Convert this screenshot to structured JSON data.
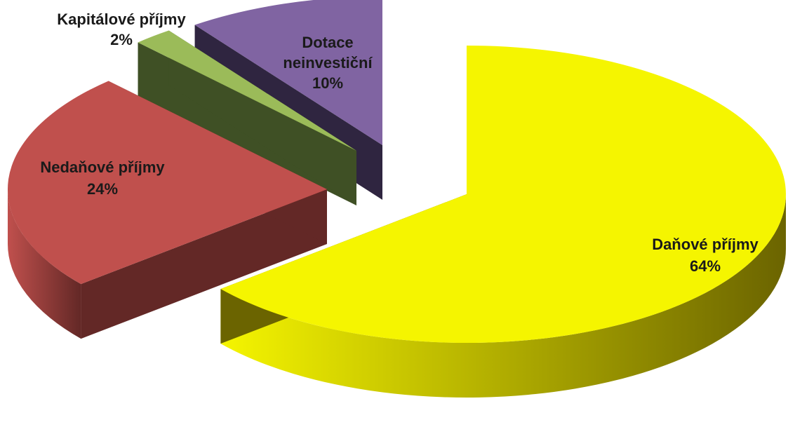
{
  "chart_data": {
    "type": "pie",
    "style": "3d-exploded",
    "slices": [
      {
        "name": "Daňové příjmy",
        "value": 64,
        "label": "64%",
        "color": "#f5f500",
        "side_dark": "#6b6400"
      },
      {
        "name": "Nedaňové příjmy",
        "value": 24,
        "label": "24%",
        "color": "#c0504d",
        "side_dark": "#632826"
      },
      {
        "name": "Kapitálové příjmy",
        "value": 2,
        "label": "2%",
        "color": "#9bbb59",
        "side_dark": "#3f5025"
      },
      {
        "name": "Dotace neinvestiční",
        "value": 10,
        "label": "10%",
        "color": "#8064a2",
        "side_dark": "#2f2540"
      }
    ]
  }
}
